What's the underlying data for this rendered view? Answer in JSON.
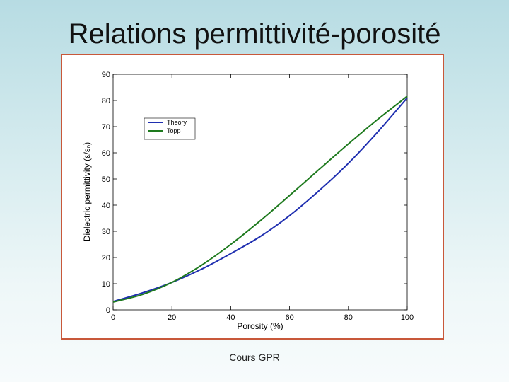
{
  "slide": {
    "title": "Relations permittivité-porosité",
    "footer": "Cours GPR"
  },
  "colors": {
    "frame": "#c8583a",
    "theory": "#1f2fb0",
    "topp": "#1e7a1e"
  },
  "chart_data": {
    "type": "line",
    "xlabel": "Porosity (%)",
    "ylabel": "Dielectric permittivity (ε/ε₀)",
    "xlim": [
      0,
      100
    ],
    "ylim": [
      0,
      90
    ],
    "xticks": [
      0,
      20,
      40,
      60,
      80,
      100
    ],
    "yticks": [
      0,
      10,
      20,
      30,
      40,
      50,
      60,
      70,
      80,
      90
    ],
    "grid": false,
    "legend": "top-left",
    "series": [
      {
        "name": "Theory",
        "color": "#1f2fb0",
        "x": [
          0,
          10,
          20,
          30,
          40,
          50,
          60,
          70,
          80,
          90,
          100
        ],
        "y": [
          3.2,
          6.5,
          10.5,
          15.5,
          21.5,
          28,
          36,
          45.5,
          56,
          68,
          81
        ]
      },
      {
        "name": "Topp",
        "color": "#1e7a1e",
        "x": [
          0,
          10,
          20,
          30,
          40,
          50,
          60,
          70,
          80,
          90,
          100
        ],
        "y": [
          3,
          5.9,
          10.5,
          17,
          25,
          34,
          43.7,
          53.6,
          63.4,
          72.8,
          81.6
        ]
      }
    ]
  }
}
